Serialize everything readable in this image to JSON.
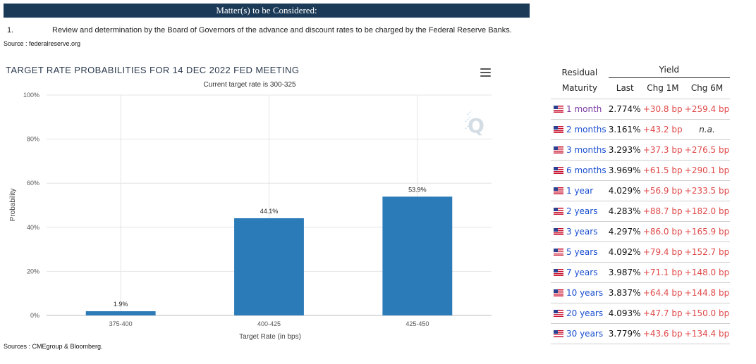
{
  "banner": "Matter(s) to be Considered:",
  "agenda": {
    "number": "1.",
    "text": "Review and determination by the Board of Governors of the advance and discount rates to be charged by the Federal Reserve Banks."
  },
  "source_top": "Source : federalreserve.org",
  "source_bottom": "Sources : CMEgroup & Bloomberg.",
  "chart_data": {
    "type": "bar",
    "title": "TARGET RATE PROBABILITIES FOR 14 DEC 2022 FED MEETING",
    "subtitle": "Current target rate is 300-325",
    "xlabel": "Target Rate (in bps)",
    "ylabel": "Probability",
    "categories": [
      "375-400",
      "400-425",
      "425-450"
    ],
    "values": [
      1.9,
      44.1,
      53.9
    ],
    "data_labels": [
      "1.9%",
      "44.1%",
      "53.9%"
    ],
    "ylim": [
      0,
      100
    ],
    "yticks": [
      0,
      20,
      40,
      60,
      80,
      100
    ],
    "ytick_labels": [
      "0%",
      "20%",
      "40%",
      "60%",
      "80%",
      "100%"
    ],
    "grid": true,
    "bar_color": "#2b7bb9"
  },
  "yield_table": {
    "headers": {
      "maturity": [
        "Residual",
        "Maturity"
      ],
      "group": "Yield",
      "last": "Last",
      "chg1m": "Chg 1M",
      "chg6m": "Chg 6M"
    },
    "rows": [
      {
        "maturity": "1 month",
        "last": "2.774%",
        "chg1m": "+30.8 bp",
        "chg6m": "+259.4 bp"
      },
      {
        "maturity": "2 months",
        "last": "3.161%",
        "chg1m": "+43.2 bp",
        "chg6m": "n.a."
      },
      {
        "maturity": "3 months",
        "last": "3.293%",
        "chg1m": "+37.3 bp",
        "chg6m": "+276.5 bp"
      },
      {
        "maturity": "6 months",
        "last": "3.969%",
        "chg1m": "+61.5 bp",
        "chg6m": "+290.1 bp"
      },
      {
        "maturity": "1 year",
        "last": "4.029%",
        "chg1m": "+56.9 bp",
        "chg6m": "+233.5 bp"
      },
      {
        "maturity": "2 years",
        "last": "4.283%",
        "chg1m": "+88.7 bp",
        "chg6m": "+182.0 bp"
      },
      {
        "maturity": "3 years",
        "last": "4.297%",
        "chg1m": "+86.0 bp",
        "chg6m": "+165.9 bp"
      },
      {
        "maturity": "5 years",
        "last": "4.092%",
        "chg1m": "+79.4 bp",
        "chg6m": "+152.7 bp"
      },
      {
        "maturity": "7 years",
        "last": "3.987%",
        "chg1m": "+71.1 bp",
        "chg6m": "+148.0 bp"
      },
      {
        "maturity": "10 years",
        "last": "3.837%",
        "chg1m": "+64.4 bp",
        "chg6m": "+144.8 bp"
      },
      {
        "maturity": "20 years",
        "last": "4.093%",
        "chg1m": "+47.7 bp",
        "chg6m": "+150.0 bp"
      },
      {
        "maturity": "30 years",
        "last": "3.779%",
        "chg1m": "+43.6 bp",
        "chg6m": "+134.4 bp"
      }
    ],
    "flag_icon": "us-flag-icon"
  }
}
